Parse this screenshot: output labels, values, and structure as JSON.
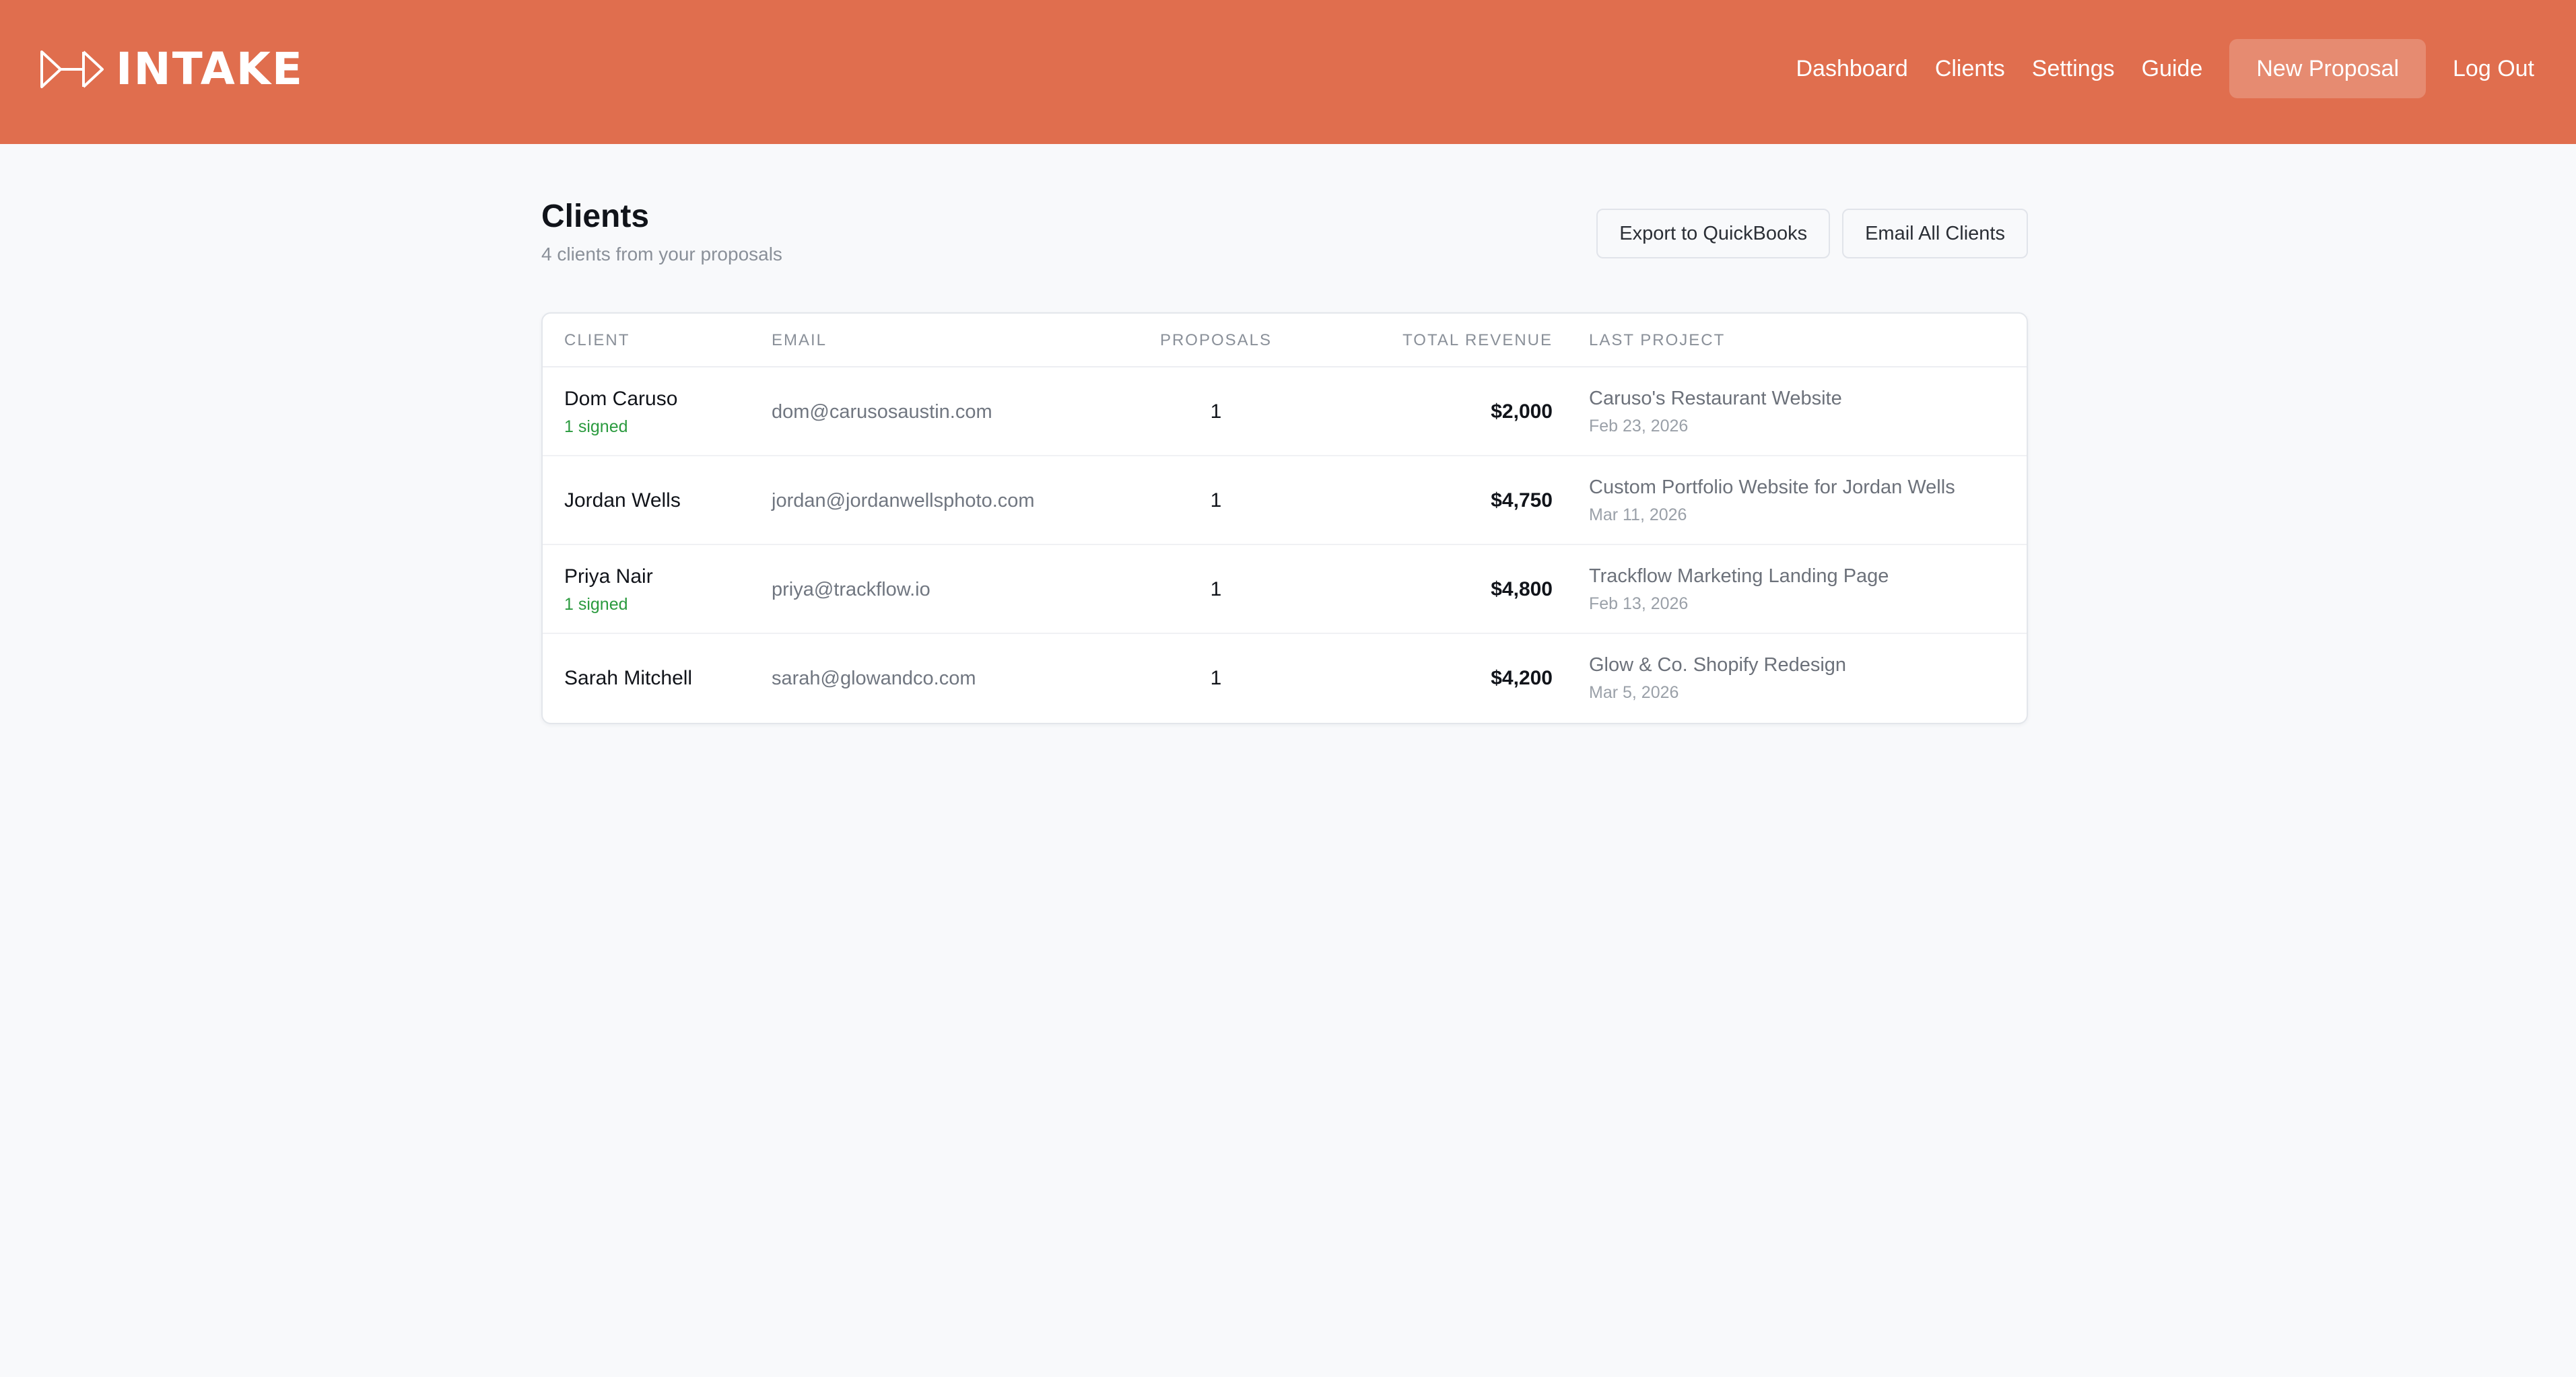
{
  "brand": {
    "name": "INTAKE",
    "logo_icon": "play-arrow-logo-icon"
  },
  "nav": {
    "links": [
      "Dashboard",
      "Clients",
      "Settings",
      "Guide"
    ],
    "cta": "New Proposal",
    "logout": "Log Out"
  },
  "page": {
    "title": "Clients",
    "subtitle": "4 clients from your proposals"
  },
  "actions": {
    "export": "Export to QuickBooks",
    "email_all": "Email All Clients"
  },
  "table": {
    "headers": {
      "client": "CLIENT",
      "email": "EMAIL",
      "proposals": "PROPOSALS",
      "revenue": "TOTAL REVENUE",
      "last_project": "LAST PROJECT"
    },
    "rows": [
      {
        "name": "Dom Caruso",
        "signed": "1 signed",
        "email": "dom@carusosaustin.com",
        "proposals": "1",
        "revenue": "$2,000",
        "project": "Caruso's Restaurant Website",
        "date": "Feb 23, 2026"
      },
      {
        "name": "Jordan Wells",
        "signed": "",
        "email": "jordan@jordanwellsphoto.com",
        "proposals": "1",
        "revenue": "$4,750",
        "project": "Custom Portfolio Website for Jordan Wells",
        "date": "Mar 11, 2026"
      },
      {
        "name": "Priya Nair",
        "signed": "1 signed",
        "email": "priya@trackflow.io",
        "proposals": "1",
        "revenue": "$4,800",
        "project": "Trackflow Marketing Landing Page",
        "date": "Feb 13, 2026"
      },
      {
        "name": "Sarah Mitchell",
        "signed": "",
        "email": "sarah@glowandco.com",
        "proposals": "1",
        "revenue": "$4,200",
        "project": "Glow & Co. Shopify Redesign",
        "date": "Mar 5, 2026"
      }
    ]
  },
  "colors": {
    "brand": "#e06e4e",
    "signed": "#2a9a3e",
    "background": "#f8f9fb"
  }
}
